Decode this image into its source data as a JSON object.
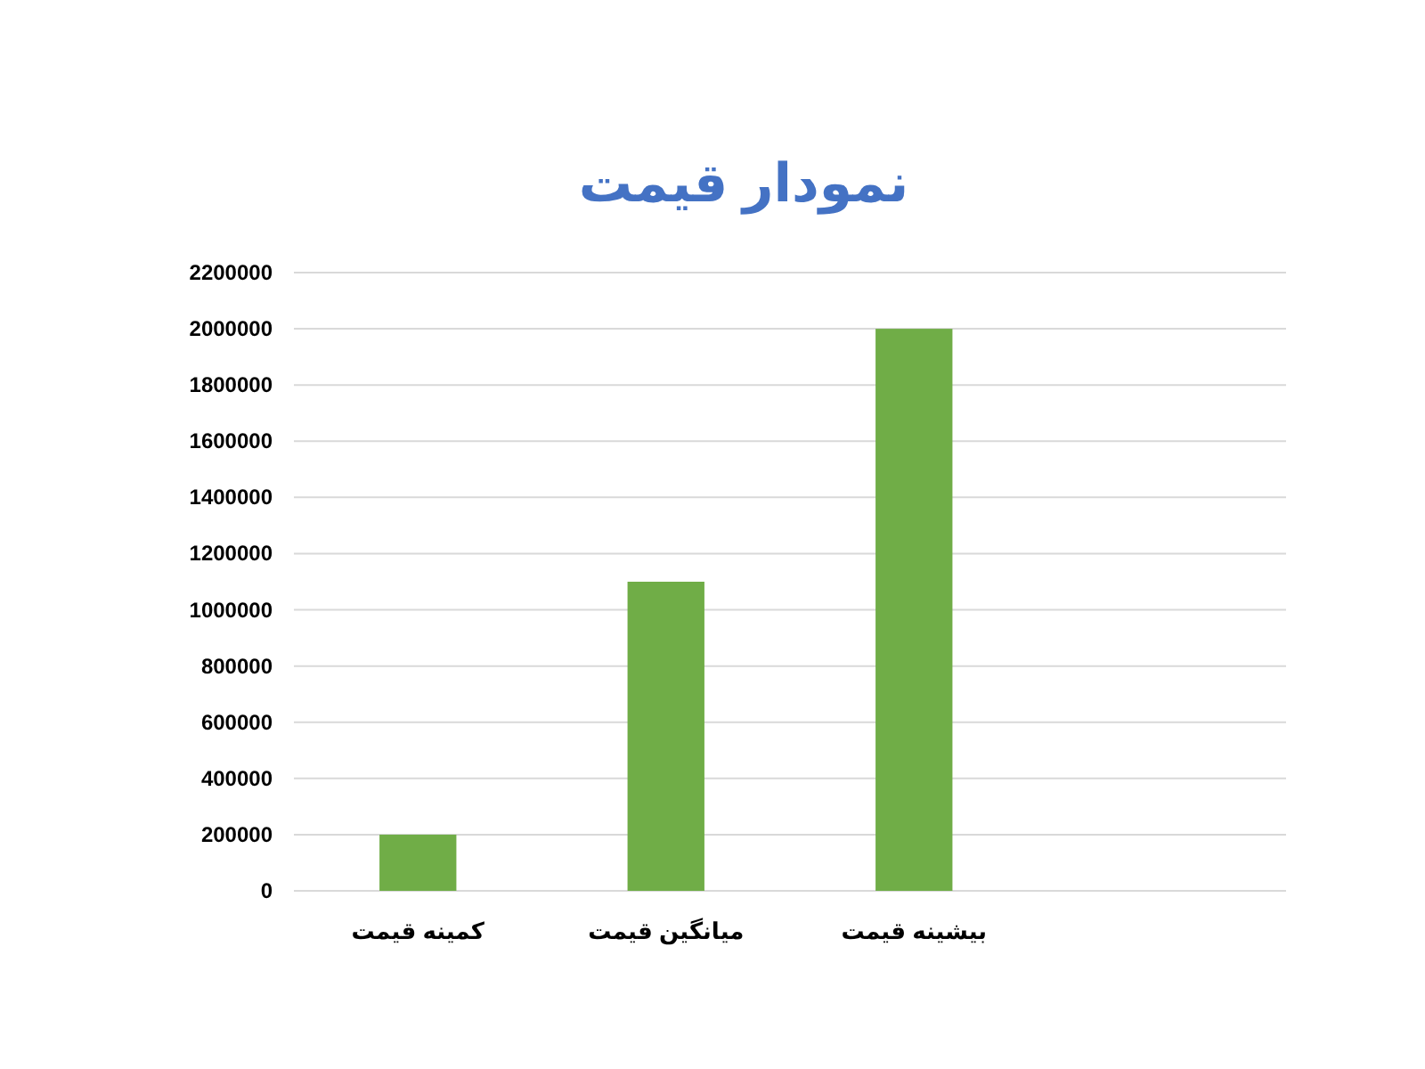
{
  "chart_data": {
    "type": "bar",
    "title": "نمودار قیمت",
    "categories": [
      "کمینه قیمت",
      "میانگین قیمت",
      "بیشینه قیمت",
      null
    ],
    "values": [
      200000,
      1100000,
      2000000,
      null
    ],
    "color": "#70ad47",
    "ylim": [
      0,
      2200000
    ],
    "yticks": [
      0,
      200000,
      400000,
      600000,
      800000,
      1000000,
      1200000,
      1400000,
      1600000,
      1800000,
      2000000,
      2200000
    ],
    "grid": "y"
  }
}
